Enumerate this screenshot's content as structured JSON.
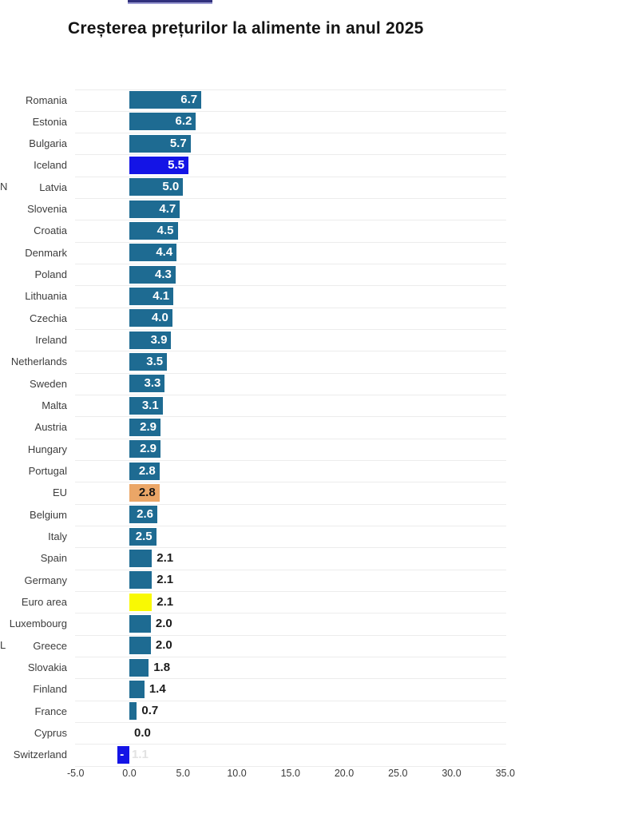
{
  "page": {
    "title": "Creșterea prețurilor la alimente in anul 2025"
  },
  "edge_artifacts": {
    "top_bar_fragment": true,
    "left_clipped_letters": [
      {
        "text": "N",
        "y_center": 234
      },
      {
        "text": "L",
        "y_center": 808
      }
    ]
  },
  "chart_data": {
    "type": "bar",
    "orientation": "horizontal",
    "title": "Creșterea prețurilor la alimente in anul 2025",
    "xlabel": "",
    "ylabel": "",
    "xlim": [
      -5,
      35
    ],
    "x_ticks": [
      -5,
      0,
      5,
      10,
      15,
      20,
      25,
      30,
      35
    ],
    "x_tick_labels": [
      "-5.0",
      "0.0",
      "5.0",
      "10.0",
      "15.0",
      "20.0",
      "25.0",
      "30.0",
      "35.0"
    ],
    "grid": "horizontal-row-separators",
    "legend": "none",
    "colors": {
      "default": "#1E6B92",
      "highlight_blue": "#1414E6",
      "eu_orange": "#EBA667",
      "euro_yellow": "#F9F903"
    },
    "rows": [
      {
        "label": "Romania",
        "value": 6.7,
        "display": "6.7",
        "color": "default",
        "value_label": "inside-white"
      },
      {
        "label": "Estonia",
        "value": 6.2,
        "display": "6.2",
        "color": "default",
        "value_label": "inside-white"
      },
      {
        "label": "Bulgaria",
        "value": 5.7,
        "display": "5.7",
        "color": "default",
        "value_label": "inside-white"
      },
      {
        "label": "Iceland",
        "value": 5.5,
        "display": "5.5",
        "color": "highlight_blue",
        "value_label": "inside-white"
      },
      {
        "label": "Latvia",
        "value": 5.0,
        "display": "5.0",
        "color": "default",
        "value_label": "inside-white"
      },
      {
        "label": "Slovenia",
        "value": 4.7,
        "display": "4.7",
        "color": "default",
        "value_label": "inside-white"
      },
      {
        "label": "Croatia",
        "value": 4.5,
        "display": "4.5",
        "color": "default",
        "value_label": "inside-white"
      },
      {
        "label": "Denmark",
        "value": 4.4,
        "display": "4.4",
        "color": "default",
        "value_label": "inside-white"
      },
      {
        "label": "Poland",
        "value": 4.3,
        "display": "4.3",
        "color": "default",
        "value_label": "inside-white"
      },
      {
        "label": "Lithuania",
        "value": 4.1,
        "display": "4.1",
        "color": "default",
        "value_label": "inside-white"
      },
      {
        "label": "Czechia",
        "value": 4.0,
        "display": "4.0",
        "color": "default",
        "value_label": "inside-white"
      },
      {
        "label": "Ireland",
        "value": 3.9,
        "display": "3.9",
        "color": "default",
        "value_label": "inside-white"
      },
      {
        "label": "Netherlands",
        "value": 3.5,
        "display": "3.5",
        "color": "default",
        "value_label": "inside-white"
      },
      {
        "label": "Sweden",
        "value": 3.3,
        "display": "3.3",
        "color": "default",
        "value_label": "inside-white"
      },
      {
        "label": "Malta",
        "value": 3.1,
        "display": "3.1",
        "color": "default",
        "value_label": "inside-white"
      },
      {
        "label": "Austria",
        "value": 2.9,
        "display": "2.9",
        "color": "default",
        "value_label": "inside-white"
      },
      {
        "label": "Hungary",
        "value": 2.9,
        "display": "2.9",
        "color": "default",
        "value_label": "inside-white"
      },
      {
        "label": "Portugal",
        "value": 2.8,
        "display": "2.8",
        "color": "default",
        "value_label": "inside-white"
      },
      {
        "label": "EU",
        "value": 2.8,
        "display": "2.8",
        "color": "eu_orange",
        "value_label": "inside-black"
      },
      {
        "label": "Belgium",
        "value": 2.6,
        "display": "2.6",
        "color": "default",
        "value_label": "inside-white"
      },
      {
        "label": "Italy",
        "value": 2.5,
        "display": "2.5",
        "color": "default",
        "value_label": "inside-white"
      },
      {
        "label": "Spain",
        "value": 2.1,
        "display": "2.1",
        "color": "default",
        "value_label": "outside"
      },
      {
        "label": "Germany",
        "value": 2.1,
        "display": "2.1",
        "color": "default",
        "value_label": "outside"
      },
      {
        "label": "Euro area",
        "value": 2.1,
        "display": "2.1",
        "color": "euro_yellow",
        "value_label": "outside"
      },
      {
        "label": "Luxembourg",
        "value": 2.0,
        "display": "2.0",
        "color": "default",
        "value_label": "outside"
      },
      {
        "label": "Greece",
        "value": 2.0,
        "display": "2.0",
        "color": "default",
        "value_label": "outside"
      },
      {
        "label": "Slovakia",
        "value": 1.8,
        "display": "1.8",
        "color": "default",
        "value_label": "outside"
      },
      {
        "label": "Finland",
        "value": 1.4,
        "display": "1.4",
        "color": "default",
        "value_label": "outside"
      },
      {
        "label": "France",
        "value": 0.7,
        "display": "0.7",
        "color": "default",
        "value_label": "outside"
      },
      {
        "label": "Cyprus",
        "value": 0.0,
        "display": "0.0",
        "color": "default",
        "value_label": "outside"
      },
      {
        "label": "Switzerland",
        "value": -1.1,
        "display": "-1.1",
        "color": "highlight_blue",
        "value_label": "ghost"
      }
    ]
  }
}
